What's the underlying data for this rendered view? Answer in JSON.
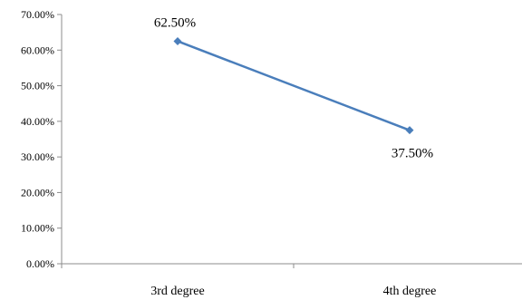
{
  "chart_data": {
    "type": "line",
    "categories": [
      "3rd degree",
      "4th degree"
    ],
    "series": [
      {
        "values": [
          62.5,
          37.5
        ]
      }
    ],
    "data_labels": [
      "62.50%",
      "37.50%"
    ],
    "y_ticks": [
      "0.00%",
      "10.00%",
      "20.00%",
      "30.00%",
      "40.00%",
      "50.00%",
      "60.00%",
      "70.00%"
    ],
    "ylim": [
      0,
      70
    ],
    "grid": false,
    "legend": "none",
    "colors": {
      "series": "#4a7ebb",
      "axis": "#8c8c8c"
    }
  }
}
